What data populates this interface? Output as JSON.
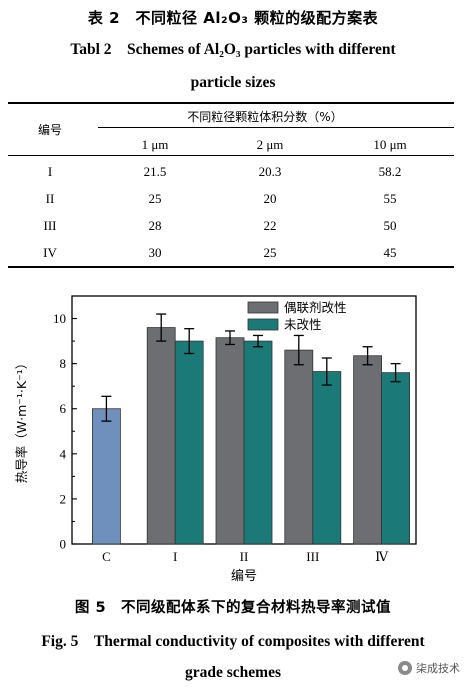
{
  "table_caption": {
    "cn": "表 2　不同粒径 Al₂O₃ 颗粒的级配方案表",
    "en_line1": "Tabl 2　Schemes of Al₂O₃ particles with different",
    "en_line2": "particle sizes"
  },
  "table": {
    "col0_header": "编号",
    "group_header": "不同粒径颗粒体积分数（%）",
    "sub_headers": [
      "1 μm",
      "2 μm",
      "10 μm"
    ],
    "rows": [
      {
        "id": "I",
        "values": [
          "21.5",
          "20.3",
          "58.2"
        ]
      },
      {
        "id": "II",
        "values": [
          "25",
          "20",
          "55"
        ]
      },
      {
        "id": "III",
        "values": [
          "28",
          "22",
          "50"
        ]
      },
      {
        "id": "IV",
        "values": [
          "30",
          "25",
          "45"
        ]
      }
    ]
  },
  "chart_data": {
    "type": "bar",
    "categories": [
      "C",
      "I",
      "II",
      "III",
      "Ⅳ"
    ],
    "series": [
      {
        "name": "偶联剂改性",
        "color": "#6d6e72",
        "values": [
          null,
          9.6,
          9.15,
          8.6,
          8.35
        ],
        "errors": [
          null,
          0.6,
          0.3,
          0.65,
          0.4
        ]
      },
      {
        "name": "未改性",
        "color": "#1b7a78",
        "values": [
          null,
          9.0,
          9.0,
          7.65,
          7.6
        ],
        "errors": [
          null,
          0.55,
          0.25,
          0.6,
          0.4
        ]
      }
    ],
    "control": {
      "category": "C",
      "value": 6.0,
      "error": 0.55,
      "color": "#6f8fbc"
    },
    "xlabel": "编号",
    "ylabel": "热导率（W·m⁻¹·K⁻¹）",
    "ylim": [
      0,
      11
    ],
    "yticks": [
      "0",
      "2",
      "4",
      "6",
      "8",
      "10"
    ],
    "legend_position": "top-right",
    "grid": false
  },
  "figure_caption": {
    "cn": "图 5　不同级配体系下的复合材料热导率测试值",
    "en_line1": "Fig. 5　Thermal conductivity of composites with different",
    "en_line2": "grade schemes"
  },
  "watermark": {
    "text": "柒成技术",
    "icon": "wechat-official-account-icon"
  }
}
